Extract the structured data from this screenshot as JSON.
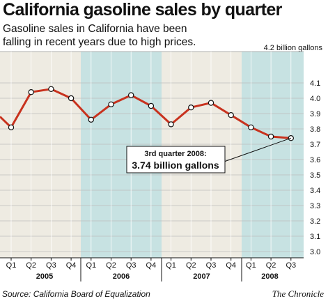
{
  "chart_data": {
    "type": "line",
    "title": "California gasoline sales by quarter",
    "subtitle": "Gasoline sales in California have been falling in recent years due to high prices.",
    "unit_label": "4.2 billion gallons",
    "ylim": [
      3.0,
      4.2
    ],
    "y_ticks": [
      "4.1",
      "4.0",
      "3.9",
      "3.8",
      "3.7",
      "3.6",
      "3.5",
      "3.4",
      "3.3",
      "3.2",
      "3.1",
      "3.0"
    ],
    "grid": true,
    "years": [
      "2005",
      "2006",
      "2007",
      "2008"
    ],
    "categories": [
      "Q1",
      "Q2",
      "Q3",
      "Q4",
      "Q1",
      "Q2",
      "Q3",
      "Q4",
      "Q1",
      "Q2",
      "Q3",
      "Q4",
      "Q1",
      "Q2",
      "Q3"
    ],
    "values": [
      3.81,
      4.04,
      4.06,
      4.0,
      3.86,
      3.96,
      4.02,
      3.95,
      3.83,
      3.94,
      3.97,
      3.89,
      3.81,
      3.75,
      3.74
    ],
    "start_value": 3.88,
    "annotation": {
      "line1": "3rd quarter 2008:",
      "line2": "3.74 billion gallons"
    },
    "colors": {
      "line": "#c8321e",
      "band_a": "#eeebe2",
      "band_b": "#c7e2e2"
    }
  },
  "source": "Source: California Board of Equalization",
  "credit": "The Chronicle"
}
